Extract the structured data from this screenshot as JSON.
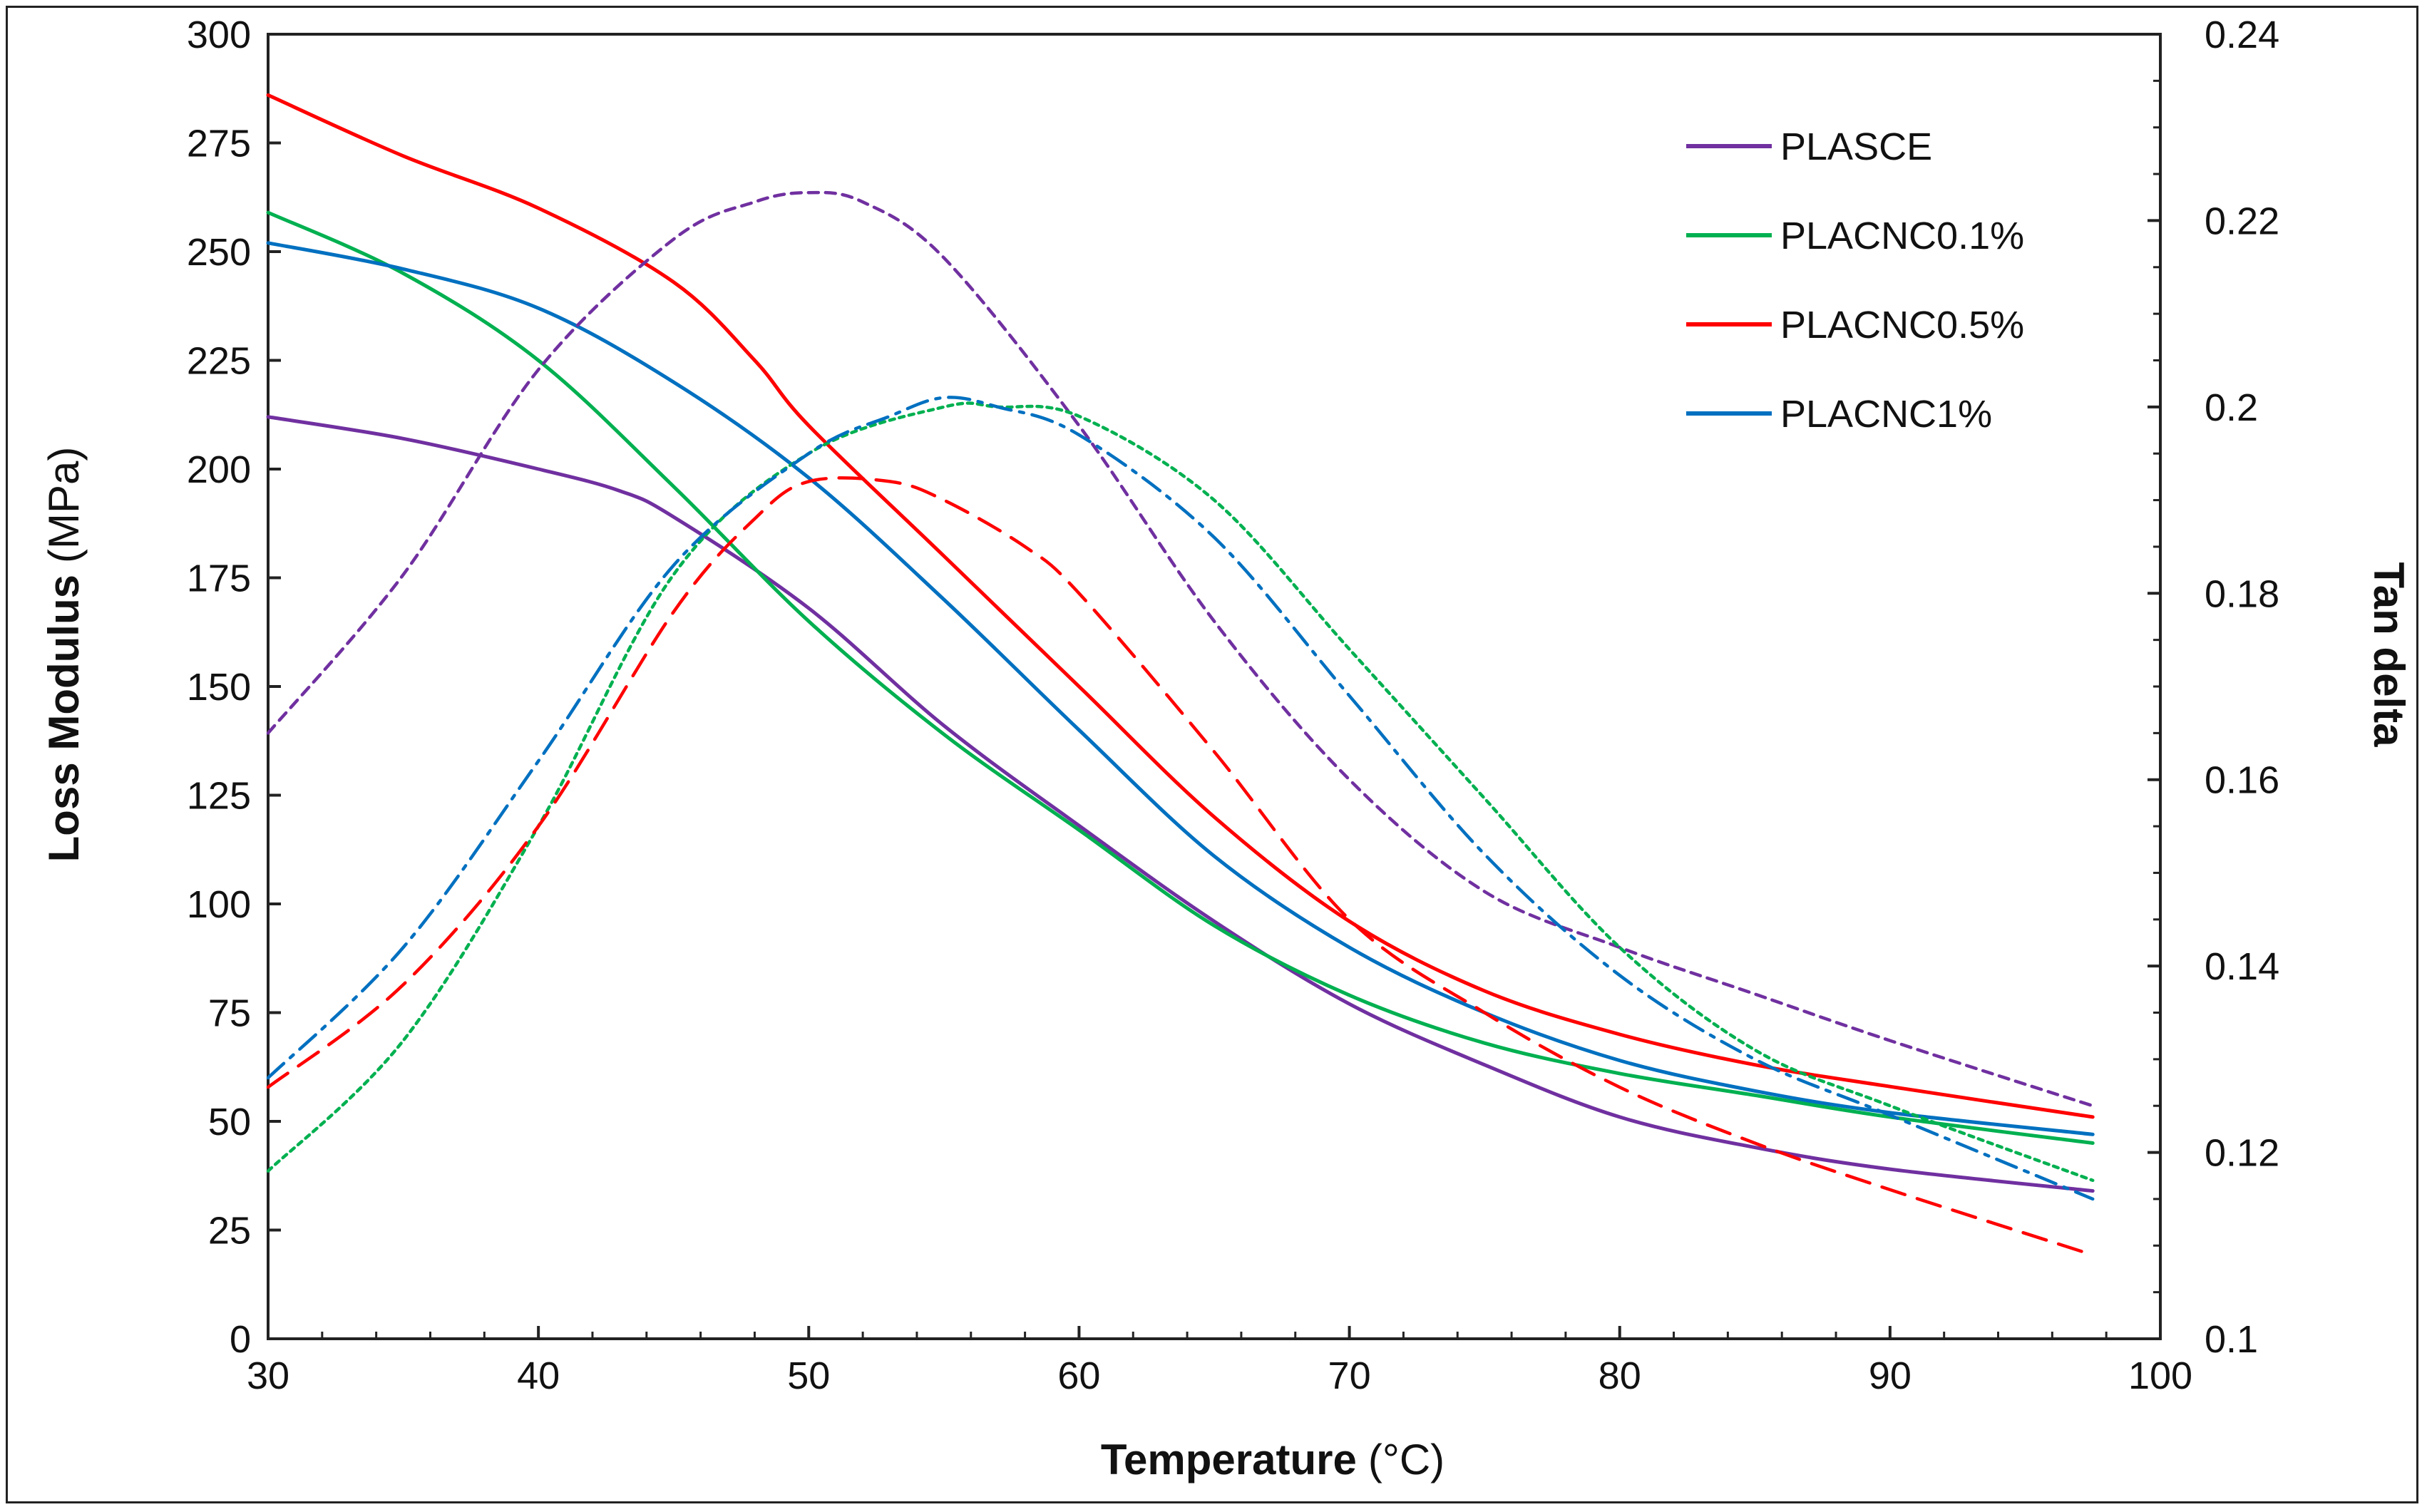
{
  "chart_data": {
    "type": "line",
    "title": "",
    "xlabel": "Temperature",
    "xlabel_unit": "(°C)",
    "ylabel": "Loss Modulus",
    "ylabel_unit": "(MPa)",
    "y2label": "Tan delta",
    "xlim": [
      30,
      100
    ],
    "ylim": [
      0,
      300
    ],
    "y2lim": [
      0.1,
      0.24
    ],
    "x_ticks": [
      "30",
      "40",
      "50",
      "60",
      "70",
      "80",
      "90",
      "100"
    ],
    "y_ticks": [
      "0",
      "25",
      "50",
      "75",
      "100",
      "125",
      "150",
      "175",
      "200",
      "225",
      "250",
      "275",
      "300"
    ],
    "y2_ticks": [
      "0.1",
      "0.12",
      "0.14",
      "0.16",
      "0.18",
      "0.2",
      "0.22",
      "0.24"
    ],
    "legend_position": "top-right",
    "series": [
      {
        "name": "PLASCE",
        "color": "#7030a0",
        "axis": "loss_modulus",
        "style": "solid",
        "x": [
          30,
          35,
          40,
          43,
          45,
          50,
          55,
          60,
          65,
          70,
          75,
          80,
          85,
          90,
          97.5
        ],
        "y": [
          212,
          207,
          200,
          195,
          189,
          168,
          141,
          118,
          96,
          77,
          63,
          51,
          44,
          39,
          34
        ]
      },
      {
        "name": "PLACNC0.1%",
        "color": "#00b050",
        "axis": "loss_modulus",
        "style": "solid",
        "x": [
          30,
          35,
          40,
          45,
          50,
          55,
          60,
          65,
          70,
          75,
          80,
          85,
          90,
          97.5
        ],
        "y": [
          259,
          245,
          225,
          196,
          165,
          139,
          117,
          95,
          79,
          68,
          61,
          56,
          51,
          45
        ]
      },
      {
        "name": "PLACNC0.5%",
        "color": "#ff0000",
        "axis": "loss_modulus",
        "style": "solid",
        "x": [
          30,
          35,
          40,
          45,
          48,
          50,
          55,
          60,
          65,
          70,
          75,
          80,
          85,
          90,
          97.5
        ],
        "y": [
          286,
          272,
          260,
          243,
          225,
          210,
          180,
          150,
          120,
          96,
          80,
          70,
          63,
          58,
          51
        ]
      },
      {
        "name": "PLACNC1%",
        "color": "#0070c0",
        "axis": "loss_modulus",
        "style": "solid",
        "x": [
          30,
          35,
          40,
          45,
          50,
          55,
          60,
          65,
          70,
          75,
          80,
          85,
          90,
          97.5
        ],
        "y": [
          252,
          246,
          237,
          220,
          198,
          170,
          140,
          111,
          90,
          75,
          64,
          57,
          52,
          47
        ]
      },
      {
        "name": "PLASCE tan delta",
        "color": "#7030a0",
        "axis": "tan_delta",
        "style": "dashed",
        "x": [
          30,
          35,
          40,
          45,
          48,
          50,
          52,
          55,
          60,
          65,
          70,
          75,
          80,
          85,
          90,
          97.5
        ],
        "y": [
          0.165,
          0.182,
          0.204,
          0.218,
          0.222,
          0.223,
          0.222,
          0.216,
          0.198,
          0.177,
          0.16,
          0.148,
          0.142,
          0.137,
          0.132,
          0.125
        ]
      },
      {
        "name": "PLACNC0.1% tan delta",
        "color": "#00b050",
        "axis": "tan_delta",
        "style": "dotted",
        "x": [
          30,
          35,
          40,
          45,
          50,
          55,
          57,
          60,
          65,
          70,
          75,
          80,
          85,
          90,
          97.5
        ],
        "y": [
          0.118,
          0.132,
          0.155,
          0.182,
          0.195,
          0.2,
          0.2,
          0.199,
          0.19,
          0.174,
          0.158,
          0.142,
          0.131,
          0.125,
          0.117
        ]
      },
      {
        "name": "PLACNC0.5% tan delta",
        "color": "#ff0000",
        "axis": "tan_delta",
        "style": "longdash",
        "x": [
          30,
          35,
          40,
          45,
          48,
          50,
          53,
          55,
          58,
          60,
          65,
          70,
          75,
          80,
          85,
          90,
          97.5
        ],
        "y": [
          0.127,
          0.138,
          0.155,
          0.178,
          0.188,
          0.192,
          0.192,
          0.19,
          0.185,
          0.18,
          0.163,
          0.145,
          0.135,
          0.127,
          0.121,
          0.116,
          0.109
        ]
      },
      {
        "name": "PLACNC1% tan delta",
        "color": "#0070c0",
        "axis": "tan_delta",
        "style": "dashdot",
        "x": [
          30,
          35,
          40,
          45,
          50,
          53,
          55,
          57,
          60,
          65,
          70,
          75,
          80,
          85,
          90,
          97.5
        ],
        "y": [
          0.128,
          0.142,
          0.162,
          0.183,
          0.195,
          0.199,
          0.201,
          0.2,
          0.197,
          0.186,
          0.169,
          0.152,
          0.139,
          0.13,
          0.124,
          0.115
        ]
      }
    ],
    "legend": [
      "PLASCE",
      "PLACNC0.1%",
      "PLACNC0.5%",
      "PLACNC1%"
    ]
  }
}
